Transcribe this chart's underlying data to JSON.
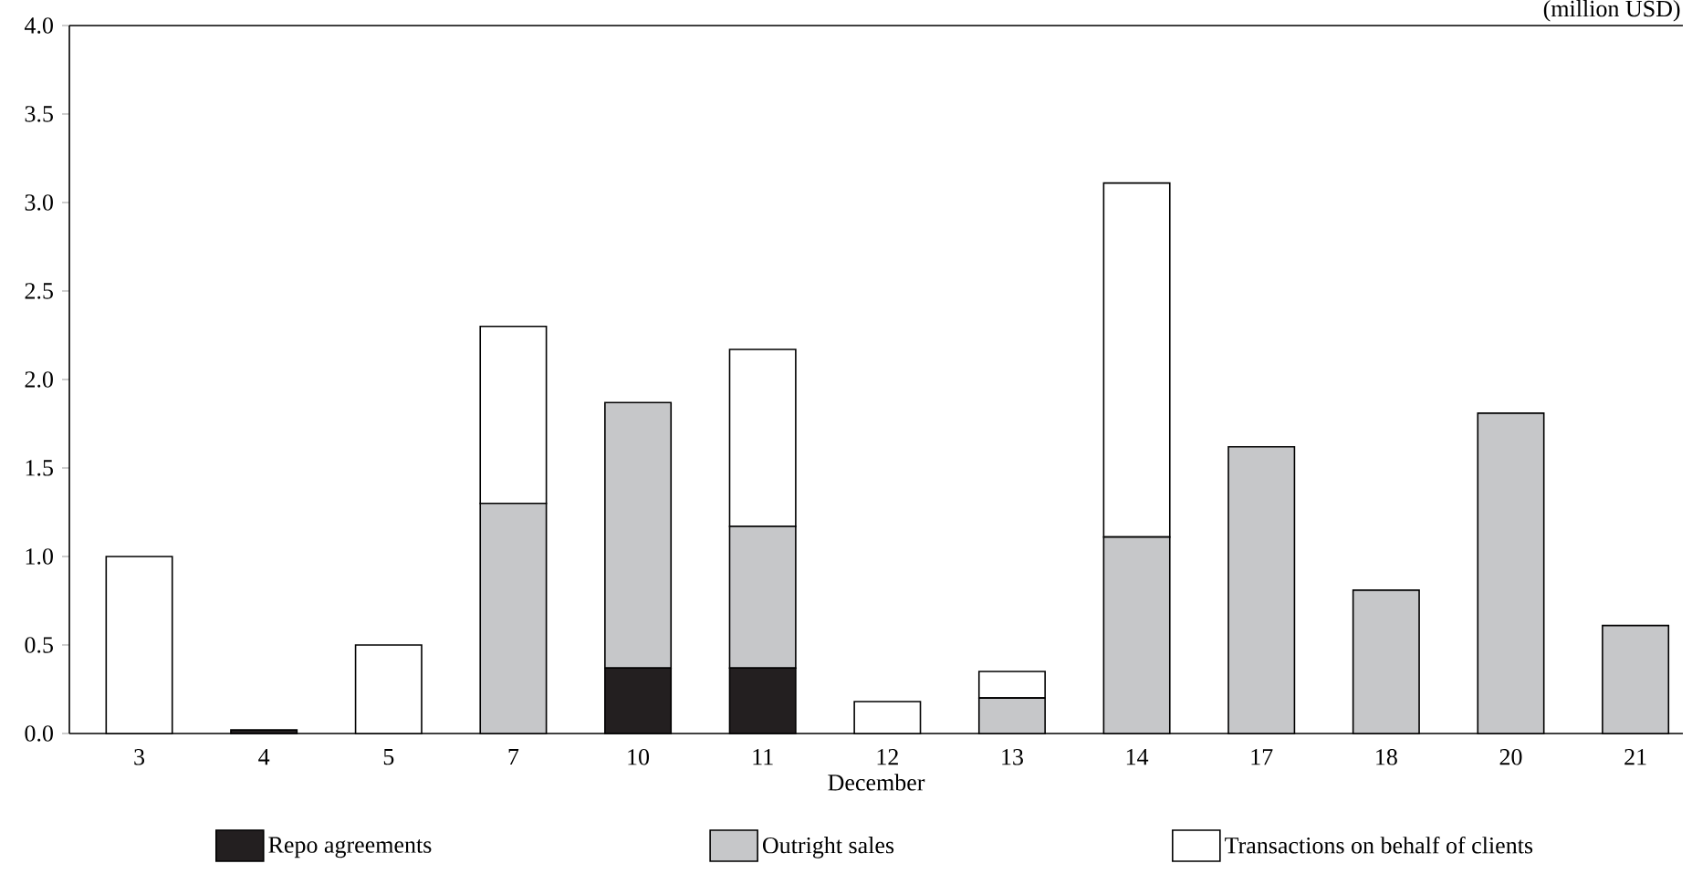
{
  "chart_data": {
    "type": "bar",
    "stacked": true,
    "xlabel": "December",
    "categories": [
      "3",
      "4",
      "5",
      "7",
      "10",
      "11",
      "12",
      "13",
      "14",
      "17",
      "18",
      "20",
      "21"
    ],
    "series": [
      {
        "name": "Repo agreements",
        "color": "#231f20",
        "values": [
          0,
          0.02,
          0,
          0,
          0.37,
          0.37,
          0,
          0,
          0,
          0,
          0,
          0,
          0
        ]
      },
      {
        "name": "Outright sales",
        "color": "#c6c7c9",
        "values": [
          0,
          0,
          0,
          1.3,
          1.5,
          0.8,
          0,
          0.2,
          1.11,
          1.62,
          0.81,
          1.81,
          0.61
        ]
      },
      {
        "name": "Transactions on behalf of clients",
        "color": "#ffffff",
        "values": [
          1.0,
          0,
          0.5,
          1.0,
          0,
          1.0,
          0.18,
          0.15,
          2.0,
          0,
          0,
          0,
          0
        ]
      }
    ],
    "ylim": [
      0,
      4
    ],
    "yticks": [
      {
        "value": 0,
        "label": "0.0"
      },
      {
        "value": 0.5,
        "label": "0.5"
      },
      {
        "value": 1,
        "label": "1.0"
      },
      {
        "value": 1.5,
        "label": "1.5"
      },
      {
        "value": 2,
        "label": "2.0"
      },
      {
        "value": 2.5,
        "label": "2.5"
      },
      {
        "value": 3,
        "label": "3.0"
      },
      {
        "value": 3.5,
        "label": "3.5"
      },
      {
        "value": 4,
        "label": "4.0"
      }
    ],
    "annotations": [
      "(million USD)"
    ],
    "legend": "bottom"
  }
}
